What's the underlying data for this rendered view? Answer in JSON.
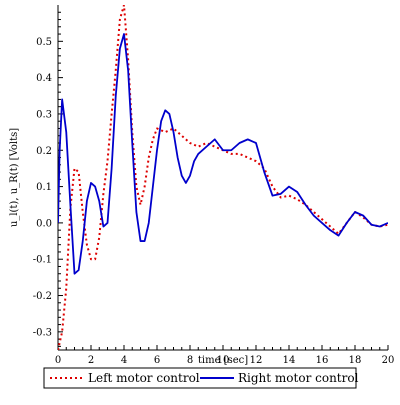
{
  "chart_data": {
    "type": "line",
    "title": "",
    "xlabel": "time [sec]",
    "ylabel": "u_l(t), u_R(t) [Volts]",
    "xlim": [
      0,
      20
    ],
    "ylim": [
      -0.35,
      0.6
    ],
    "x_ticks": [
      0,
      2,
      4,
      6,
      8,
      10,
      12,
      14,
      16,
      18,
      20
    ],
    "y_ticks": [
      -0.3,
      -0.2,
      -0.1,
      0.0,
      0.1,
      0.2,
      0.3,
      0.4,
      0.5
    ],
    "x_tick_labels": [
      "0",
      "2",
      "4",
      "6",
      "8",
      "10",
      "12",
      "14",
      "16",
      "18",
      "20"
    ],
    "y_tick_labels": [
      "-0.3",
      "-0.2",
      "-0.1",
      "0.0",
      "0.1",
      "0.2",
      "0.3",
      "0.4",
      "0.5"
    ],
    "grid": false,
    "legend_position": "bottom",
    "series": [
      {
        "name": "Left motor control",
        "color": "#dd0000",
        "style": "dotted",
        "x": [
          0,
          0.25,
          0.5,
          0.75,
          1.0,
          1.25,
          1.5,
          1.75,
          2.0,
          2.25,
          2.5,
          2.75,
          3.0,
          3.25,
          3.5,
          3.75,
          4.0,
          4.25,
          4.5,
          4.75,
          5.0,
          5.25,
          5.5,
          5.75,
          6.0,
          6.5,
          7.0,
          7.5,
          8.0,
          8.5,
          9.0,
          9.5,
          10.0,
          10.5,
          11.0,
          11.5,
          12.0,
          12.5,
          13.0,
          13.5,
          14.0,
          14.5,
          15.0,
          15.5,
          16.0,
          16.5,
          17.0,
          17.5,
          18.0,
          18.5,
          19.0,
          19.5,
          20.0
        ],
        "y": [
          -0.35,
          -0.3,
          -0.18,
          0.04,
          0.15,
          0.14,
          0.03,
          -0.06,
          -0.1,
          -0.1,
          -0.04,
          0.08,
          0.17,
          0.3,
          0.42,
          0.56,
          0.6,
          0.45,
          0.25,
          0.1,
          0.05,
          0.1,
          0.18,
          0.23,
          0.26,
          0.25,
          0.26,
          0.24,
          0.22,
          0.21,
          0.22,
          0.21,
          0.2,
          0.19,
          0.19,
          0.18,
          0.17,
          0.15,
          0.1,
          0.07,
          0.075,
          0.065,
          0.05,
          0.03,
          0.01,
          -0.01,
          -0.03,
          0.0,
          0.03,
          0.015,
          -0.005,
          -0.01,
          -0.005
        ]
      },
      {
        "name": "Right motor control",
        "color": "#0000cc",
        "style": "solid",
        "x": [
          0,
          0.1,
          0.25,
          0.5,
          0.75,
          1.0,
          1.25,
          1.5,
          1.75,
          2.0,
          2.25,
          2.5,
          2.75,
          3.0,
          3.25,
          3.5,
          3.75,
          4.0,
          4.25,
          4.5,
          4.75,
          5.0,
          5.25,
          5.5,
          5.75,
          6.0,
          6.25,
          6.5,
          6.75,
          7.0,
          7.25,
          7.5,
          7.75,
          8.0,
          8.25,
          8.5,
          9.0,
          9.5,
          10.0,
          10.5,
          11.0,
          11.5,
          12.0,
          12.5,
          13.0,
          13.5,
          14.0,
          14.5,
          15.0,
          15.5,
          16.0,
          16.5,
          17.0,
          17.5,
          18.0,
          18.5,
          19.0,
          19.5,
          20.0
        ],
        "y": [
          0.0,
          0.2,
          0.34,
          0.25,
          0.05,
          -0.14,
          -0.13,
          -0.05,
          0.06,
          0.11,
          0.1,
          0.06,
          -0.01,
          0.0,
          0.15,
          0.35,
          0.48,
          0.52,
          0.42,
          0.22,
          0.03,
          -0.05,
          -0.05,
          0.0,
          0.1,
          0.2,
          0.28,
          0.31,
          0.3,
          0.25,
          0.18,
          0.13,
          0.11,
          0.13,
          0.17,
          0.19,
          0.21,
          0.23,
          0.2,
          0.2,
          0.22,
          0.23,
          0.22,
          0.14,
          0.075,
          0.08,
          0.1,
          0.085,
          0.05,
          0.02,
          0.0,
          -0.02,
          -0.035,
          0.0,
          0.03,
          0.02,
          -0.005,
          -0.01,
          0.0
        ]
      }
    ]
  }
}
